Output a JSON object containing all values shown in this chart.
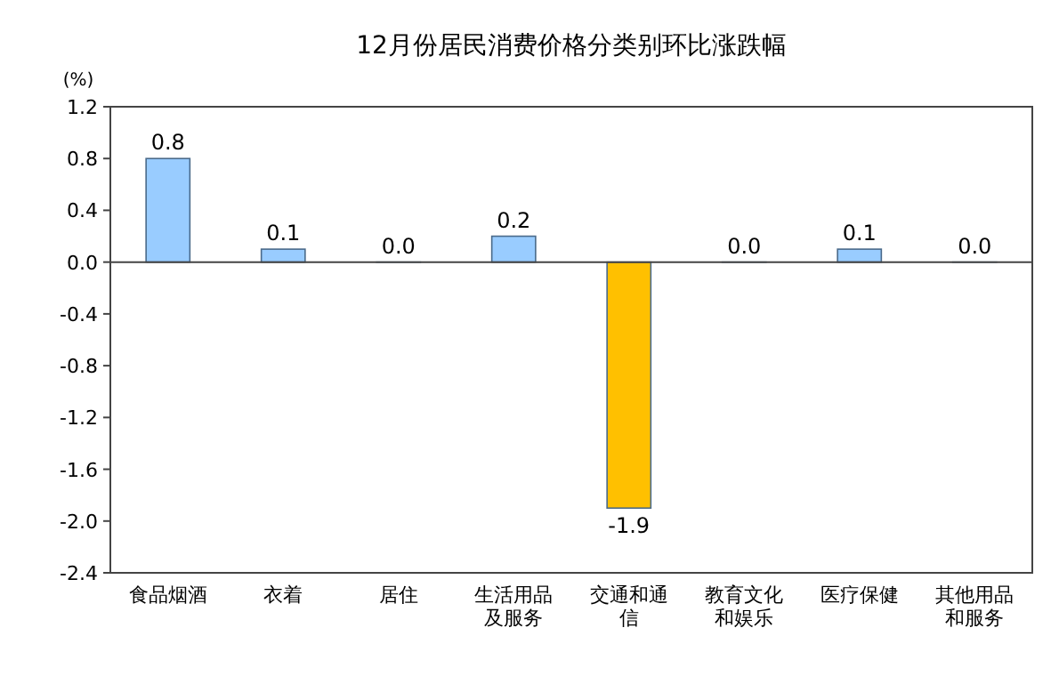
{
  "chart_data": {
    "type": "bar",
    "title": "12月份居民消费价格分类别环比涨跌幅",
    "ylabel": "(%)",
    "categories": [
      "食品烟酒",
      "衣着",
      "居住",
      "生活用品及服务",
      "交通和通信",
      "教育文化和娱乐",
      "医疗保健",
      "其他用品和服务"
    ],
    "values": [
      0.8,
      0.1,
      0.0,
      0.2,
      -1.9,
      0.0,
      0.1,
      0.0
    ],
    "value_labels": [
      "0.8",
      "0.1",
      "0.0",
      "0.2",
      "-1.9",
      "0.0",
      "0.1",
      "0.0"
    ],
    "colors": [
      "#99ccff",
      "#99ccff",
      "#99ccff",
      "#99ccff",
      "#ffc000",
      "#99ccff",
      "#99ccff",
      "#99ccff"
    ],
    "ylim": [
      -2.4,
      1.2
    ],
    "yticks": [
      {
        "value": 1.2,
        "label": "1.2"
      },
      {
        "value": 0.8,
        "label": "0.8"
      },
      {
        "value": 0.4,
        "label": "0.4"
      },
      {
        "value": 0,
        "label": "0.0"
      },
      {
        "value": -0.4,
        "label": "-0.4"
      },
      {
        "value": -0.8,
        "label": "-0.8"
      },
      {
        "value": -1.2,
        "label": "-1.2"
      },
      {
        "value": -1.6,
        "label": "-1.6"
      },
      {
        "value": -2.0,
        "label": "-2.0"
      },
      {
        "value": -2.4,
        "label": "-2.4"
      }
    ]
  }
}
